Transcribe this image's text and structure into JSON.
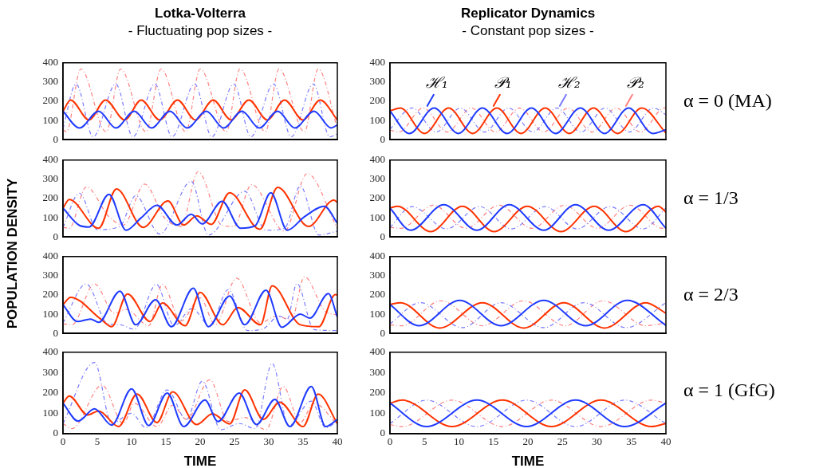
{
  "chart_data": [
    {
      "type": "line",
      "title": "Lotka-Volterra",
      "subtitle": "- Fluctuating pop sizes -",
      "xlim": [
        0,
        40
      ],
      "xticks": [
        0,
        5,
        10,
        15,
        20,
        25,
        30,
        35,
        40
      ],
      "ylim": [
        0,
        400
      ],
      "yticks": [
        0,
        100,
        200,
        300,
        400
      ],
      "tick_labels": "y",
      "marker": "none",
      "series": [
        {
          "color": "#1f3bff",
          "line_style": "solid",
          "x": [
            0,
            2.4,
            5.2,
            7.7,
            10.4,
            12.9,
            15.6,
            18.1,
            20.9,
            23.4,
            26.1,
            28.6,
            31.3,
            33.8,
            36.6,
            39.1,
            40
          ],
          "values": [
            148,
            61,
            148,
            61,
            148,
            61,
            148,
            61,
            148,
            61,
            148,
            61,
            148,
            61,
            148,
            61,
            77
          ]
        },
        {
          "color": "#ff3300",
          "line_style": "solid",
          "x": [
            0,
            1.1,
            3.8,
            6.2,
            9.0,
            11.4,
            14.1,
            16.7,
            19.3,
            21.9,
            24.5,
            27.1,
            29.8,
            32.3,
            35.0,
            37.5,
            40
          ],
          "values": [
            148,
            206,
            103,
            206,
            103,
            206,
            103,
            206,
            103,
            206,
            103,
            206,
            103,
            206,
            103,
            206,
            103
          ]
        },
        {
          "color": "#7a7aff",
          "line_style": "dashed",
          "x": [
            0,
            1.9,
            4.4,
            7.7,
            10.2,
            13.4,
            15.9,
            19.2,
            21.7,
            24.9,
            27.4,
            30.7,
            33.3,
            36.5,
            38.9,
            40
          ],
          "values": [
            58,
            290,
            15,
            290,
            15,
            290,
            15,
            290,
            15,
            290,
            15,
            290,
            15,
            290,
            15,
            30
          ]
        },
        {
          "color": "#ff8080",
          "line_style": "dashed",
          "x": [
            0,
            0.5,
            2.6,
            6.3,
            8.4,
            12.1,
            14.3,
            17.9,
            20.0,
            23.8,
            25.8,
            29.5,
            31.5,
            35.2,
            37.2,
            40
          ],
          "values": [
            52,
            41,
            368,
            41,
            368,
            41,
            368,
            41,
            368,
            41,
            368,
            41,
            368,
            41,
            368,
            60
          ]
        }
      ]
    },
    {
      "type": "line",
      "title": "Replicator Dynamics",
      "subtitle": "- Constant pop sizes -",
      "annotations": [
        "α = 0 (MA)"
      ],
      "xlim": [
        0,
        40
      ],
      "xticks": [
        0,
        5,
        10,
        15,
        20,
        25,
        30,
        35,
        40
      ],
      "ylim": [
        0,
        400
      ],
      "yticks": [
        0,
        100,
        200,
        300,
        400
      ],
      "tick_labels": "y",
      "marker": "none",
      "series": [
        {
          "name": "ℋ₁",
          "color": "#1f3bff",
          "line_style": "solid",
          "x": [
            0,
            2.8,
            6.4,
            9.9,
            13.4,
            17.0,
            20.5,
            24.0,
            27.6,
            31.1,
            34.6,
            38.1,
            40
          ],
          "values": [
            150,
            32,
            165,
            32,
            165,
            32,
            165,
            32,
            165,
            32,
            165,
            32,
            52
          ]
        },
        {
          "name": "𝒫₁",
          "color": "#ff3300",
          "line_style": "solid",
          "x": [
            0,
            1.5,
            5.0,
            8.5,
            12.0,
            15.5,
            19.0,
            22.5,
            26.0,
            29.5,
            33.0,
            36.5,
            40
          ],
          "values": [
            150,
            165,
            32,
            165,
            32,
            165,
            32,
            165,
            32,
            165,
            32,
            165,
            35
          ]
        },
        {
          "name": "ℋ₂",
          "color": "#7a7aff",
          "line_style": "dashed",
          "x": [
            0,
            3.2,
            6.7,
            10.2,
            13.7,
            17.2,
            20.7,
            24.2,
            27.7,
            31.2,
            34.7,
            38.2,
            40
          ],
          "values": [
            55,
            165,
            40,
            165,
            40,
            165,
            40,
            165,
            40,
            165,
            40,
            165,
            130
          ]
        },
        {
          "name": "𝒫₂",
          "color": "#ff8080",
          "line_style": "dashed",
          "x": [
            0,
            1.3,
            4.8,
            8.3,
            11.8,
            15.3,
            18.8,
            22.3,
            25.8,
            29.3,
            32.8,
            36.3,
            39.8,
            40
          ],
          "values": [
            50,
            40,
            165,
            40,
            165,
            40,
            165,
            40,
            165,
            40,
            165,
            40,
            165,
            164
          ]
        }
      ]
    },
    {
      "type": "line",
      "ylabel": "POPULATION DENSITY",
      "xlim": [
        0,
        40
      ],
      "xticks": [
        0,
        5,
        10,
        15,
        20,
        25,
        30,
        35,
        40
      ],
      "ylim": [
        0,
        400
      ],
      "yticks": [
        0,
        100,
        200,
        300,
        400
      ],
      "tick_labels": "y",
      "marker": "none",
      "series": [
        {
          "color": "#1f3bff",
          "line_style": "solid",
          "x": [
            0,
            2.4,
            3.8,
            6.7,
            9.2,
            11.4,
            13.7,
            16.6,
            18.7,
            20.3,
            23.2,
            25.9,
            28.0,
            30.3,
            32.7,
            35.2,
            38.1,
            40
          ],
          "values": [
            150,
            60,
            52,
            222,
            35,
            100,
            165,
            62,
            118,
            68,
            185,
            45,
            58,
            230,
            35,
            105,
            160,
            72
          ]
        },
        {
          "color": "#ff3300",
          "line_style": "solid",
          "x": [
            0,
            0.9,
            5.2,
            7.8,
            11.7,
            15.3,
            17.6,
            19.5,
            21.6,
            24.3,
            28.7,
            31.3,
            35.8,
            39.5,
            40
          ],
          "values": [
            150,
            195,
            45,
            250,
            50,
            188,
            62,
            110,
            65,
            230,
            40,
            258,
            55,
            192,
            180
          ]
        },
        {
          "color": "#7a7aff",
          "line_style": "dashed",
          "x": [
            0,
            2.4,
            5.0,
            8.3,
            10.6,
            14.1,
            18.7,
            21.2,
            26.5,
            29.6,
            32.3,
            34.6,
            37.3,
            40
          ],
          "values": [
            50,
            228,
            38,
            55,
            215,
            15,
            290,
            10,
            238,
            35,
            45,
            265,
            10,
            30
          ]
        },
        {
          "color": "#ff8080",
          "line_style": "dashed",
          "x": [
            0,
            0.9,
            3.4,
            6.7,
            8.8,
            11.9,
            14.8,
            17.2,
            19.7,
            23.2,
            24.9,
            27.5,
            32.3,
            35.6,
            40
          ],
          "values": [
            50,
            45,
            260,
            105,
            62,
            275,
            100,
            55,
            340,
            60,
            55,
            272,
            30,
            330,
            45
          ]
        }
      ]
    },
    {
      "type": "line",
      "annotations": [
        "α = 1/3"
      ],
      "xlim": [
        0,
        40
      ],
      "xticks": [
        0,
        5,
        10,
        15,
        20,
        25,
        30,
        35,
        40
      ],
      "ylim": [
        0,
        400
      ],
      "yticks": [
        0,
        100,
        200,
        300,
        400
      ],
      "tick_labels": "y",
      "marker": "none",
      "series": [
        {
          "color": "#1f3bff",
          "line_style": "solid",
          "x": [
            0,
            3.0,
            7.8,
            12.6,
            17.3,
            22.3,
            26.9,
            31.7,
            36.7,
            40
          ],
          "values": [
            150,
            35,
            168,
            35,
            168,
            35,
            168,
            35,
            168,
            45
          ]
        },
        {
          "color": "#ff3300",
          "line_style": "solid",
          "x": [
            0,
            1.1,
            5.9,
            10.5,
            15.1,
            19.9,
            24.8,
            29.6,
            34.2,
            38.9,
            40
          ],
          "values": [
            150,
            160,
            28,
            160,
            28,
            160,
            28,
            160,
            28,
            160,
            130
          ]
        },
        {
          "color": "#7a7aff",
          "line_style": "dashed",
          "x": [
            0,
            3.2,
            8.2,
            13.0,
            17.6,
            22.5,
            27.1,
            31.9,
            36.7,
            40
          ],
          "values": [
            50,
            158,
            42,
            158,
            42,
            158,
            42,
            158,
            42,
            150
          ]
        },
        {
          "color": "#ff8080",
          "line_style": "dashed",
          "x": [
            0,
            1.6,
            6.3,
            11.0,
            15.8,
            20.6,
            25.3,
            30.1,
            34.8,
            39.5,
            40
          ],
          "values": [
            50,
            45,
            165,
            45,
            165,
            45,
            165,
            45,
            165,
            45,
            48
          ]
        }
      ]
    },
    {
      "type": "line",
      "xlim": [
        0,
        40
      ],
      "xticks": [
        0,
        5,
        10,
        15,
        20,
        25,
        30,
        35,
        40
      ],
      "ylim": [
        0,
        400
      ],
      "yticks": [
        0,
        100,
        200,
        300,
        400
      ],
      "tick_labels": "y",
      "marker": "none",
      "series": [
        {
          "color": "#1f3bff",
          "line_style": "solid",
          "x": [
            0,
            2.1,
            4.0,
            5.2,
            8.3,
            10.6,
            13.5,
            15.8,
            19.0,
            21.2,
            24.3,
            26.5,
            29.6,
            31.9,
            34.6,
            36.0,
            38.7,
            40
          ],
          "values": [
            150,
            62,
            75,
            58,
            220,
            45,
            175,
            35,
            235,
            35,
            195,
            45,
            225,
            32,
            100,
            80,
            207,
            85
          ]
        },
        {
          "color": "#ff3300",
          "line_style": "solid",
          "x": [
            0,
            1.1,
            5.5,
            7.1,
            9.4,
            12.7,
            14.5,
            17.8,
            20.0,
            23.3,
            25.5,
            28.8,
            30.5,
            34.6,
            37.3,
            39.7,
            40
          ],
          "values": [
            150,
            188,
            75,
            35,
            205,
            62,
            158,
            40,
            213,
            45,
            135,
            45,
            248,
            45,
            35,
            202,
            200
          ]
        },
        {
          "color": "#7a7aff",
          "line_style": "dashed",
          "x": [
            0,
            3.4,
            6.5,
            8.3,
            10.4,
            13.6,
            16.2,
            18.8,
            21.4,
            24.1,
            26.9,
            29.2,
            31.5,
            32.7,
            34.1,
            36.6,
            40
          ],
          "values": [
            55,
            258,
            50,
            45,
            22,
            255,
            40,
            130,
            40,
            228,
            15,
            25,
            90,
            75,
            260,
            20,
            15
          ]
        },
        {
          "color": "#ff8080",
          "line_style": "dashed",
          "x": [
            0,
            1.3,
            4.6,
            7.5,
            9.2,
            12.5,
            14.5,
            17.2,
            20.0,
            22.2,
            25.3,
            28.8,
            31.1,
            33.3,
            35.2,
            38.1,
            40
          ],
          "values": [
            50,
            45,
            258,
            105,
            125,
            40,
            255,
            65,
            185,
            45,
            288,
            55,
            90,
            70,
            295,
            120,
            95
          ]
        }
      ]
    },
    {
      "type": "line",
      "annotations": [
        "α = 2/3"
      ],
      "xlim": [
        0,
        40
      ],
      "xticks": [
        0,
        5,
        10,
        15,
        20,
        25,
        30,
        35,
        40
      ],
      "ylim": [
        0,
        400
      ],
      "yticks": [
        0,
        100,
        200,
        300,
        400
      ],
      "tick_labels": "y",
      "marker": "none",
      "series": [
        {
          "color": "#1f3bff",
          "line_style": "solid",
          "x": [
            0,
            4.2,
            10.1,
            16.1,
            22.3,
            28.4,
            34.4,
            40
          ],
          "values": [
            150,
            40,
            172,
            40,
            172,
            40,
            172,
            42
          ]
        },
        {
          "color": "#ff3300",
          "line_style": "solid",
          "x": [
            0,
            1.5,
            7.2,
            13.4,
            19.4,
            25.2,
            31.1,
            37.1,
            40
          ],
          "values": [
            150,
            160,
            28,
            160,
            28,
            160,
            28,
            160,
            105
          ]
        },
        {
          "color": "#7a7aff",
          "line_style": "dashed",
          "x": [
            0,
            4.4,
            10.5,
            16.1,
            22.3,
            28.1,
            34.2,
            40
          ],
          "values": [
            50,
            160,
            30,
            160,
            30,
            160,
            30,
            160
          ]
        },
        {
          "color": "#ff8080",
          "line_style": "dashed",
          "x": [
            0,
            1.7,
            7.4,
            13.4,
            19.4,
            25.4,
            30.9,
            37.1,
            40
          ],
          "values": [
            45,
            40,
            170,
            40,
            170,
            40,
            170,
            40,
            55
          ]
        }
      ]
    },
    {
      "type": "line",
      "xlabel": "TIME",
      "xlim": [
        0,
        40
      ],
      "xticks": [
        0,
        5,
        10,
        15,
        20,
        25,
        30,
        35,
        40
      ],
      "ylim": [
        0,
        400
      ],
      "yticks": [
        0,
        100,
        200,
        300,
        400
      ],
      "marker": "none",
      "series": [
        {
          "color": "#1f3bff",
          "line_style": "solid",
          "x": [
            0,
            2.2,
            4.6,
            7.1,
            10.0,
            12.5,
            15.2,
            17.6,
            20.7,
            22.6,
            25.7,
            28.2,
            30.9,
            33.1,
            36.2,
            38.3,
            40
          ],
          "values": [
            150,
            62,
            122,
            42,
            220,
            40,
            200,
            35,
            165,
            60,
            200,
            45,
            168,
            35,
            232,
            35,
            70
          ]
        },
        {
          "color": "#ff3300",
          "line_style": "solid",
          "x": [
            0,
            0.9,
            3.6,
            5.2,
            8.1,
            10.8,
            13.7,
            16.0,
            19.5,
            21.8,
            24.3,
            26.5,
            29.2,
            31.6,
            35.0,
            37.2,
            40
          ],
          "values": [
            150,
            185,
            92,
            112,
            35,
            195,
            55,
            205,
            45,
            98,
            48,
            215,
            70,
            155,
            35,
            195,
            50
          ]
        },
        {
          "color": "#7a7aff",
          "line_style": "dashed",
          "x": [
            0,
            4.6,
            7.1,
            10.0,
            12.1,
            15.2,
            18.0,
            20.3,
            23.0,
            25.7,
            28.0,
            30.5,
            32.9,
            36.2,
            38.3,
            40
          ],
          "values": [
            50,
            350,
            50,
            100,
            30,
            215,
            70,
            258,
            20,
            50,
            25,
            345,
            40,
            160,
            30,
            60
          ]
        },
        {
          "color": "#ff8080",
          "line_style": "dashed",
          "x": [
            0,
            1.3,
            5.7,
            8.8,
            10.4,
            13.7,
            16.0,
            18.0,
            21.4,
            24.1,
            26.5,
            29.6,
            32.1,
            34.6,
            36.6,
            40
          ],
          "values": [
            50,
            25,
            238,
            50,
            150,
            35,
            140,
            70,
            265,
            60,
            80,
            20,
            232,
            55,
            150,
            45
          ]
        }
      ]
    },
    {
      "type": "line",
      "xlabel": "TIME",
      "annotations": [
        "α = 1 (GfG)"
      ],
      "xlim": [
        0,
        40
      ],
      "xticks": [
        0,
        5,
        10,
        15,
        20,
        25,
        30,
        35,
        40
      ],
      "ylim": [
        0,
        400
      ],
      "yticks": [
        0,
        100,
        200,
        300,
        400
      ],
      "marker": "none",
      "series": [
        {
          "color": "#1f3bff",
          "line_style": "solid",
          "x": [
            0,
            5.3,
            12.6,
            19.8,
            26.9,
            34.0,
            40
          ],
          "values": [
            150,
            35,
            165,
            35,
            165,
            35,
            150
          ]
        },
        {
          "color": "#ff3300",
          "line_style": "solid",
          "x": [
            0,
            1.8,
            9.0,
            16.3,
            23.4,
            30.6,
            37.9,
            40
          ],
          "values": [
            150,
            165,
            35,
            165,
            35,
            165,
            35,
            50
          ]
        },
        {
          "color": "#7a7aff",
          "line_style": "dashed",
          "x": [
            0,
            5.3,
            12.6,
            19.8,
            26.9,
            34.0,
            40
          ],
          "values": [
            50,
            165,
            35,
            165,
            35,
            165,
            50
          ]
        },
        {
          "color": "#ff8080",
          "line_style": "dashed",
          "x": [
            0,
            1.8,
            9.0,
            16.3,
            23.4,
            30.6,
            37.9,
            40
          ],
          "values": [
            45,
            35,
            165,
            35,
            165,
            35,
            165,
            150
          ]
        }
      ]
    }
  ]
}
